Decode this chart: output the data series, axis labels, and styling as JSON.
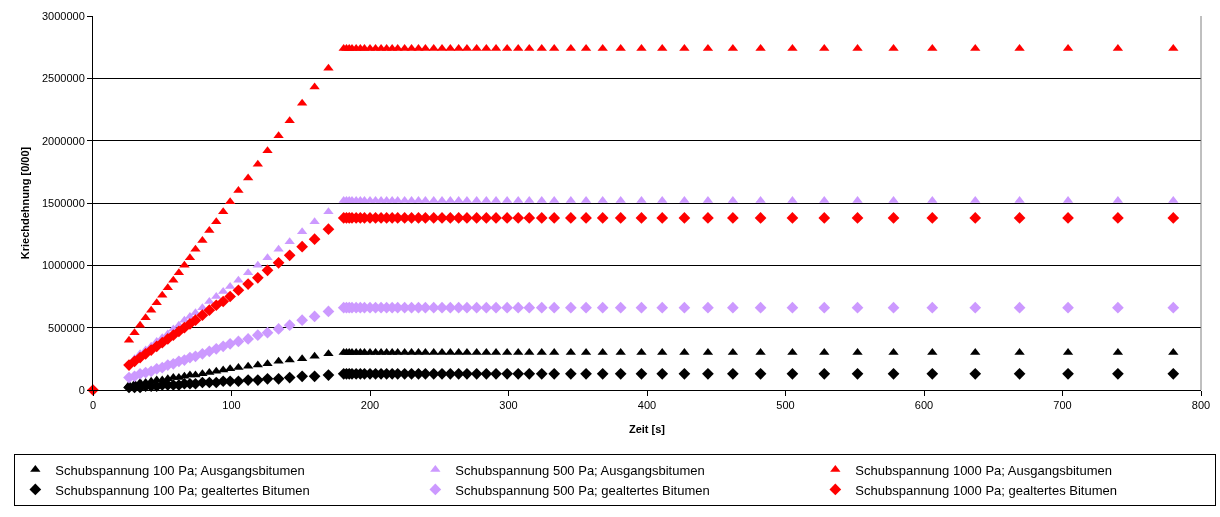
{
  "chart_data": {
    "type": "scatter",
    "xlabel": "Zeit [s]",
    "ylabel": "Kriechdehnung [0/00]",
    "x": [
      26,
      30,
      34,
      38,
      42,
      46,
      50,
      54,
      58,
      62,
      66,
      70,
      74,
      79,
      84,
      89,
      94,
      99,
      105,
      112,
      119,
      126,
      134,
      142,
      151,
      160,
      170,
      181,
      183,
      185,
      187,
      190,
      193,
      196,
      200,
      204,
      208,
      212,
      216,
      220,
      225,
      230,
      235,
      240,
      246,
      252,
      258,
      264,
      270,
      277,
      284,
      291,
      299,
      307,
      315,
      324,
      333,
      345,
      356,
      368,
      381,
      396,
      411,
      427,
      444,
      462,
      482,
      505,
      528,
      552,
      578,
      606,
      637,
      669,
      704,
      740,
      780
    ],
    "series": [
      {
        "name": "Schubspannung 100 Pa; Ausgangsbitumen",
        "color": "#000000",
        "marker": "triangle",
        "values": [
          40000,
          50000,
          60000,
          60000,
          70000,
          80000,
          80000,
          90000,
          100000,
          100000,
          110000,
          120000,
          120000,
          130000,
          140000,
          150000,
          160000,
          170000,
          180000,
          190000,
          200000,
          210000,
          230000,
          240000,
          250000,
          270000,
          290000,
          300000,
          300000,
          300000,
          300000,
          300000,
          300000,
          300000,
          300000,
          300000,
          300000,
          300000,
          300000,
          300000,
          300000,
          300000,
          300000,
          300000,
          300000,
          300000,
          300000,
          300000,
          300000,
          300000,
          300000,
          300000,
          300000,
          300000,
          300000,
          300000,
          300000,
          300000,
          300000,
          300000,
          300000,
          300000,
          300000,
          300000,
          300000,
          300000,
          300000,
          300000,
          300000,
          300000,
          300000,
          300000,
          300000,
          300000,
          300000,
          300000,
          300000
        ]
      },
      {
        "name": "Schubspannung 500 Pa; Ausgangsbitumen",
        "color": "#cc99ff",
        "marker": "triangle",
        "values": [
          null,
          250000,
          290000,
          320000,
          350000,
          390000,
          420000,
          450000,
          490000,
          520000,
          560000,
          590000,
          620000,
          660000,
          710000,
          750000,
          790000,
          830000,
          880000,
          940000,
          1000000,
          1060000,
          1130000,
          1190000,
          1270000,
          1350000,
          1430000,
          1520000,
          1520000,
          1520000,
          1520000,
          1520000,
          1520000,
          1520000,
          1520000,
          1520000,
          1520000,
          1520000,
          1520000,
          1520000,
          1520000,
          1520000,
          1520000,
          1520000,
          1520000,
          1520000,
          1520000,
          1520000,
          1520000,
          1520000,
          1520000,
          1520000,
          1520000,
          1520000,
          1520000,
          1520000,
          1520000,
          1520000,
          1520000,
          1520000,
          1520000,
          1520000,
          1520000,
          1520000,
          1520000,
          1520000,
          1520000,
          1520000,
          1520000,
          1520000,
          1520000,
          1520000,
          1520000,
          1520000,
          1520000,
          1520000,
          1520000
        ]
      },
      {
        "name": "Schubspannung 1000 Pa; Ausgangsbitumen",
        "color": "#ff0000",
        "marker": "triangle",
        "values": [
          400000,
          460000,
          520000,
          580000,
          640000,
          700000,
          760000,
          820000,
          880000,
          940000,
          1000000,
          1060000,
          1130000,
          1200000,
          1280000,
          1350000,
          1430000,
          1510000,
          1600000,
          1700000,
          1810000,
          1920000,
          2040000,
          2160000,
          2300000,
          2430000,
          2580000,
          2740000,
          2740000,
          2740000,
          2740000,
          2740000,
          2740000,
          2740000,
          2740000,
          2740000,
          2740000,
          2740000,
          2740000,
          2740000,
          2740000,
          2740000,
          2740000,
          2740000,
          2740000,
          2740000,
          2740000,
          2740000,
          2740000,
          2740000,
          2740000,
          2740000,
          2740000,
          2740000,
          2740000,
          2740000,
          2740000,
          2740000,
          2740000,
          2740000,
          2740000,
          2740000,
          2740000,
          2740000,
          2740000,
          2740000,
          2740000,
          2740000,
          2740000,
          2740000,
          2740000,
          2740000,
          2740000,
          2740000,
          2740000,
          2740000,
          2740000
        ]
      },
      {
        "name": "Schubspannung 100 Pa; gealtertes Bitumen",
        "color": "#000000",
        "marker": "diamond",
        "values": [
          20000,
          20000,
          20000,
          30000,
          30000,
          30000,
          40000,
          40000,
          40000,
          40000,
          50000,
          50000,
          50000,
          60000,
          60000,
          60000,
          70000,
          70000,
          70000,
          80000,
          80000,
          90000,
          90000,
          100000,
          110000,
          110000,
          120000,
          130000,
          130000,
          130000,
          130000,
          130000,
          130000,
          130000,
          130000,
          130000,
          130000,
          130000,
          130000,
          130000,
          130000,
          130000,
          130000,
          130000,
          130000,
          130000,
          130000,
          130000,
          130000,
          130000,
          130000,
          130000,
          130000,
          130000,
          130000,
          130000,
          130000,
          130000,
          130000,
          130000,
          130000,
          130000,
          130000,
          130000,
          130000,
          130000,
          130000,
          130000,
          130000,
          130000,
          130000,
          130000,
          130000,
          130000,
          130000,
          130000,
          130000
        ]
      },
      {
        "name": "Schubspannung 500 Pa; gealtertes Bitumen",
        "color": "#cc99ff",
        "marker": "diamond",
        "values": [
          100000,
          110000,
          130000,
          140000,
          150000,
          170000,
          180000,
          200000,
          210000,
          230000,
          240000,
          260000,
          270000,
          290000,
          310000,
          330000,
          350000,
          370000,
          390000,
          410000,
          440000,
          460000,
          490000,
          520000,
          560000,
          590000,
          630000,
          660000,
          660000,
          660000,
          660000,
          660000,
          660000,
          660000,
          660000,
          660000,
          660000,
          660000,
          660000,
          660000,
          660000,
          660000,
          660000,
          660000,
          660000,
          660000,
          660000,
          660000,
          660000,
          660000,
          660000,
          660000,
          660000,
          660000,
          660000,
          660000,
          660000,
          660000,
          660000,
          660000,
          660000,
          660000,
          660000,
          660000,
          660000,
          660000,
          660000,
          660000,
          660000,
          660000,
          660000,
          660000,
          660000,
          660000,
          660000,
          660000,
          660000
        ]
      },
      {
        "name": "Schubspannung 1000 Pa; gealtertes Bitumen",
        "color": "#ff0000",
        "marker": "diamond",
        "x": [
          0,
          26,
          30,
          34,
          38,
          42,
          46,
          50,
          54,
          58,
          62,
          66,
          70,
          74,
          79,
          84,
          89,
          94,
          99,
          105,
          112,
          119,
          126,
          134,
          142,
          151,
          160,
          170,
          181,
          183,
          185,
          187,
          190,
          193,
          196,
          200,
          204,
          208,
          212,
          216,
          220,
          225,
          230,
          235,
          240,
          246,
          252,
          258,
          264,
          270,
          277,
          284,
          291,
          299,
          307,
          315,
          324,
          333,
          345,
          356,
          368,
          381,
          396,
          411,
          427,
          444,
          462,
          482,
          505,
          528,
          552,
          578,
          606,
          637,
          669,
          704,
          740,
          780
        ],
        "values": [
          0,
          200000,
          230000,
          260000,
          290000,
          320000,
          350000,
          380000,
          410000,
          440000,
          470000,
          500000,
          530000,
          560000,
          600000,
          640000,
          680000,
          710000,
          750000,
          800000,
          850000,
          900000,
          960000,
          1020000,
          1080000,
          1150000,
          1210000,
          1290000,
          1380000,
          1380000,
          1380000,
          1380000,
          1380000,
          1380000,
          1380000,
          1380000,
          1380000,
          1380000,
          1380000,
          1380000,
          1380000,
          1380000,
          1380000,
          1380000,
          1380000,
          1380000,
          1380000,
          1380000,
          1380000,
          1380000,
          1380000,
          1380000,
          1380000,
          1380000,
          1380000,
          1380000,
          1380000,
          1380000,
          1380000,
          1380000,
          1380000,
          1380000,
          1380000,
          1380000,
          1380000,
          1380000,
          1380000,
          1380000,
          1380000,
          1380000,
          1380000,
          1380000,
          1380000,
          1380000,
          1380000,
          1380000,
          1380000,
          1380000
        ]
      }
    ],
    "xlim": [
      0,
      800
    ],
    "xticks": [
      0,
      100,
      200,
      300,
      400,
      500,
      600,
      700,
      800
    ],
    "ylim": [
      0,
      3000000
    ],
    "yticks": [
      0,
      500000,
      1000000,
      1500000,
      2000000,
      2500000,
      3000000
    ],
    "grid": "y",
    "legend": "bottom"
  }
}
